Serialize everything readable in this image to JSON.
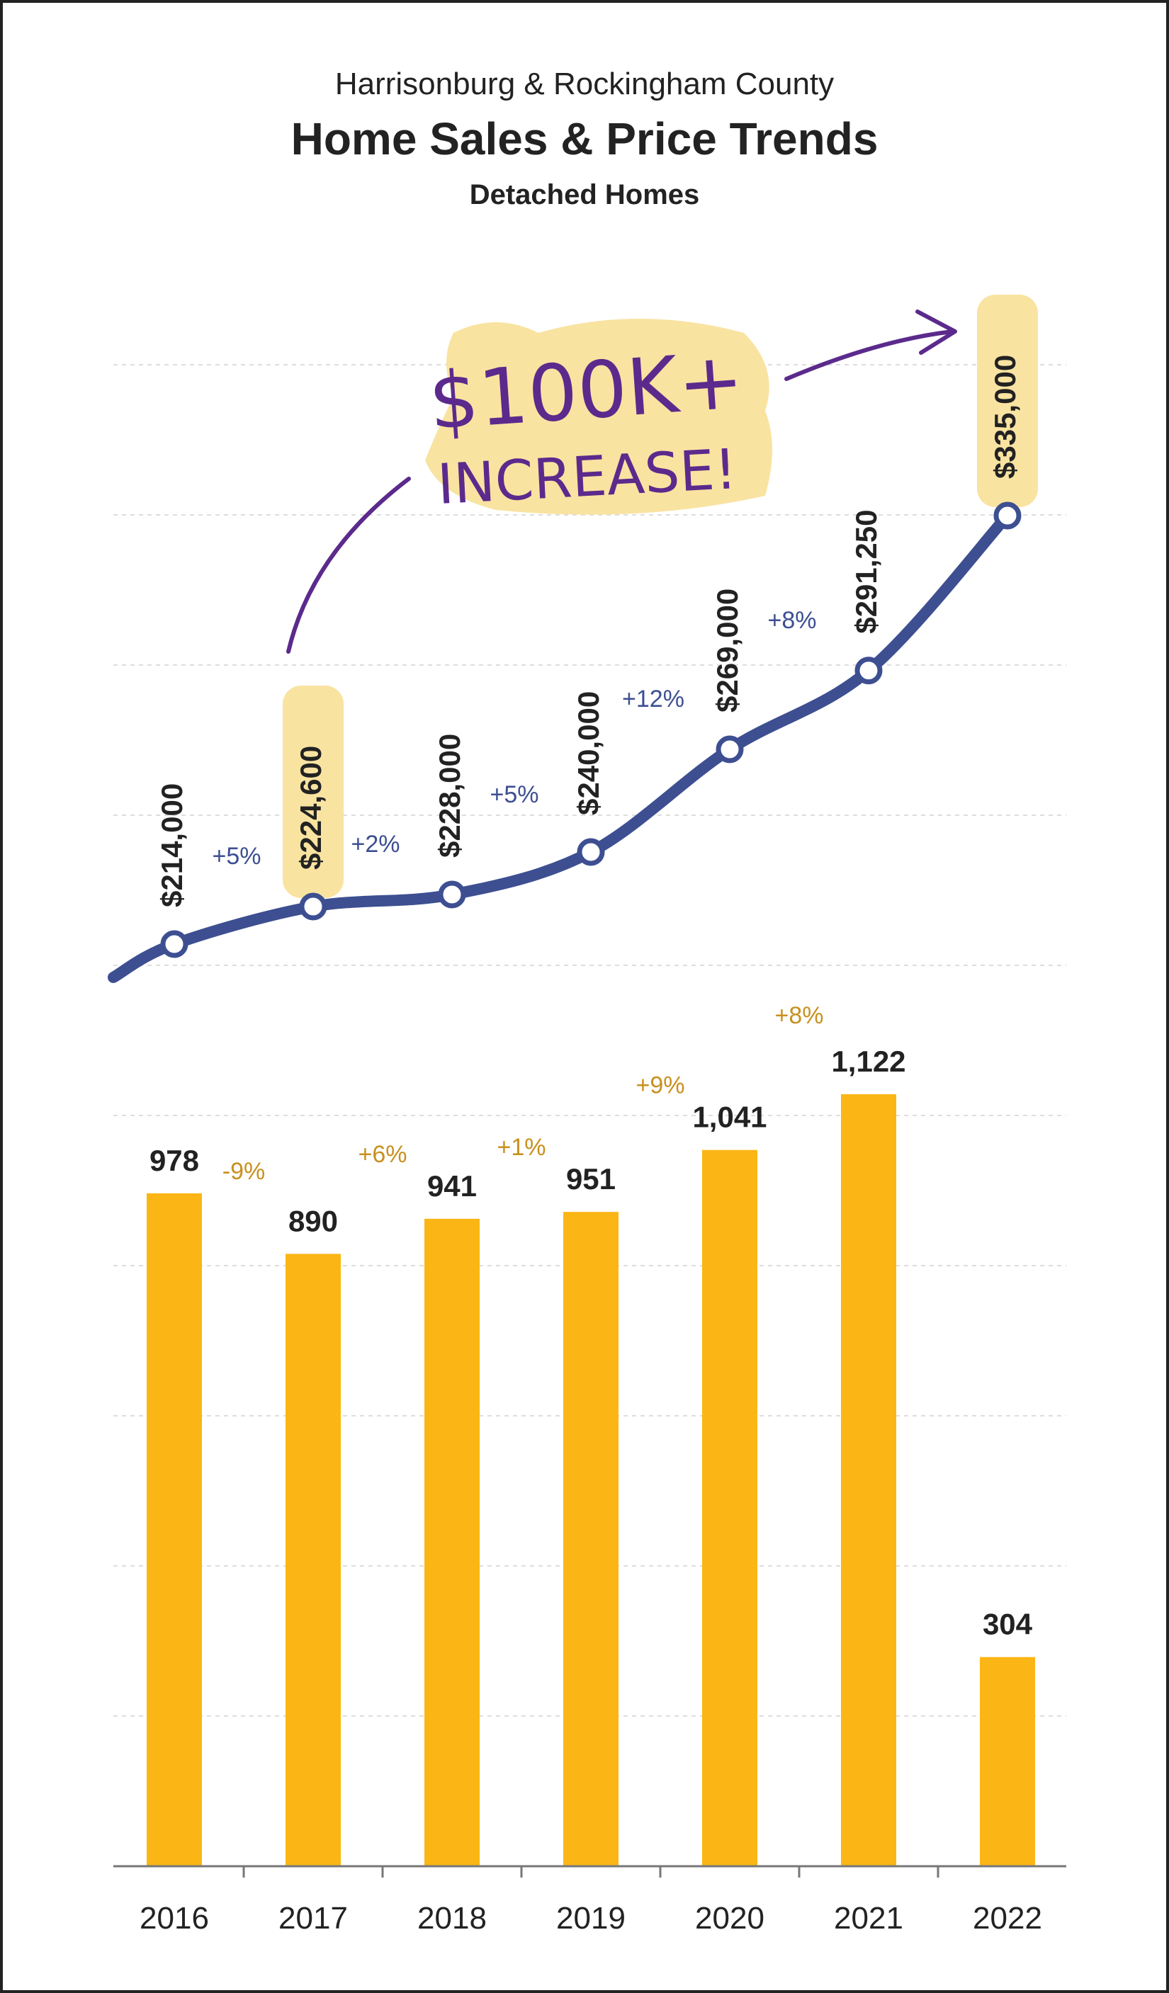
{
  "header": {
    "subtitle_top": "Harrisonburg & Rockingham County",
    "title": "Home Sales & Price Trends",
    "subtitle": "Detached Homes"
  },
  "annotation": {
    "line1": "$100K+",
    "line2": "INCREASE!",
    "highlight_color": "#f9e3a1",
    "ink_color": "#5b2a8c"
  },
  "chart_data": [
    {
      "type": "line",
      "title": "Home Sales & Price Trends",
      "x": [
        "2016",
        "2017",
        "2018",
        "2019",
        "2020",
        "2021",
        "2022"
      ],
      "series": [
        {
          "values": [
            214000,
            224600,
            228000,
            240000,
            269000,
            291250,
            335000
          ],
          "labels": [
            "$214,000",
            "$224,600",
            "$228,000",
            "$240,000",
            "$269,000",
            "$291,250",
            "$335,000"
          ],
          "color": "#3d4f91"
        }
      ],
      "changes": [
        "+5%",
        "+2%",
        "+5%",
        "+12%",
        "+8%"
      ],
      "change_color": "#3d4f91",
      "highlighted_labels": [
        "$224,600",
        "$335,000"
      ]
    },
    {
      "type": "bar",
      "categories": [
        "2016",
        "2017",
        "2018",
        "2019",
        "2020",
        "2021",
        "2022"
      ],
      "values": [
        978,
        890,
        941,
        951,
        1041,
        1122,
        304
      ],
      "labels": [
        "978",
        "890",
        "941",
        "951",
        "1,041",
        "1,122",
        "304"
      ],
      "changes": [
        "-9%",
        "+6%",
        "+1%",
        "+9%",
        "+8%"
      ],
      "bar_color": "#fbb616",
      "change_color": "#c8901f",
      "ylim": [
        0,
        1350
      ],
      "grid": true
    }
  ],
  "colors": {
    "frame": "#222222",
    "grid": "#dddddd",
    "axis": "#777777",
    "text": "#222222"
  }
}
